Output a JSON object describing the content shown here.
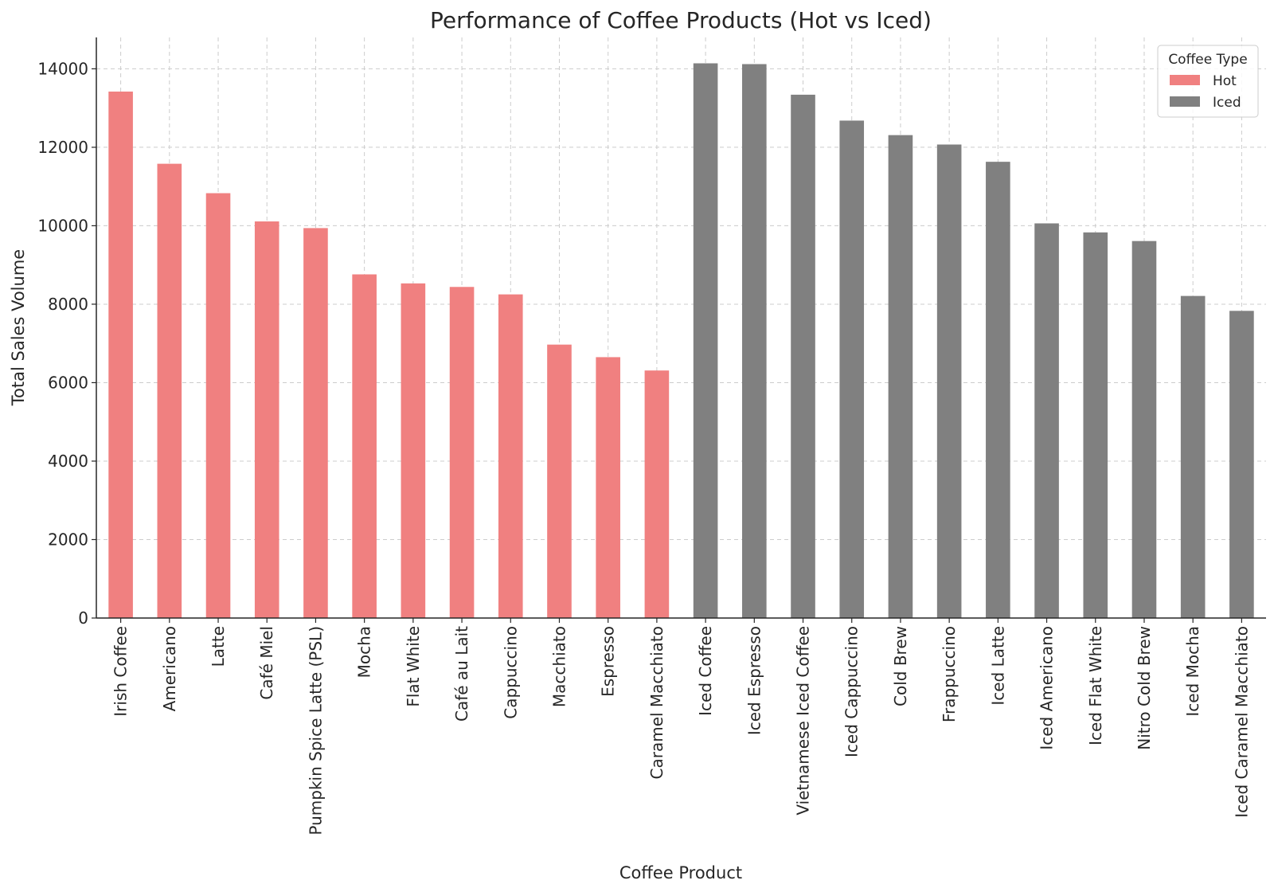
{
  "chart_data": {
    "type": "bar",
    "title": "Performance of Coffee Products (Hot vs Iced)",
    "xlabel": "Coffee Product",
    "ylabel": "Total Sales Volume",
    "ylim": [
      0,
      14800
    ],
    "yticks": [
      0,
      2000,
      4000,
      6000,
      8000,
      10000,
      12000,
      14000
    ],
    "ytick_labels": [
      "0",
      "2000",
      "4000",
      "6000",
      "8000",
      "10000",
      "12000",
      "14000"
    ],
    "grid": true,
    "legend": {
      "title": "Coffee Type",
      "placement": "top-right",
      "entries": [
        {
          "label": "Hot",
          "color": "#f08080"
        },
        {
          "label": "Iced",
          "color": "#808080"
        }
      ]
    },
    "categories": [
      "Irish Coffee",
      "Americano",
      "Latte",
      "Café Miel",
      "Pumpkin Spice Latte (PSL)",
      "Mocha",
      "Flat White",
      "Café au Lait",
      "Cappuccino",
      "Macchiato",
      "Espresso",
      "Caramel Macchiato",
      "Iced Coffee",
      "Iced Espresso",
      "Vietnamese Iced Coffee",
      "Iced Cappuccino",
      "Cold Brew",
      "Frappuccino",
      "Iced Latte",
      "Iced Americano",
      "Iced Flat White",
      "Nitro Cold Brew",
      "Iced Mocha",
      "Iced Caramel Macchiato"
    ],
    "values": [
      13420,
      11580,
      10830,
      10110,
      9940,
      8760,
      8530,
      8440,
      8250,
      6970,
      6650,
      6310,
      14140,
      14120,
      13340,
      12680,
      12310,
      12070,
      11630,
      10060,
      9830,
      9610,
      8210,
      7830
    ],
    "types": [
      "Hot",
      "Hot",
      "Hot",
      "Hot",
      "Hot",
      "Hot",
      "Hot",
      "Hot",
      "Hot",
      "Hot",
      "Hot",
      "Hot",
      "Iced",
      "Iced",
      "Iced",
      "Iced",
      "Iced",
      "Iced",
      "Iced",
      "Iced",
      "Iced",
      "Iced",
      "Iced",
      "Iced"
    ],
    "colors": {
      "Hot": "#f08080",
      "Iced": "#808080"
    }
  }
}
